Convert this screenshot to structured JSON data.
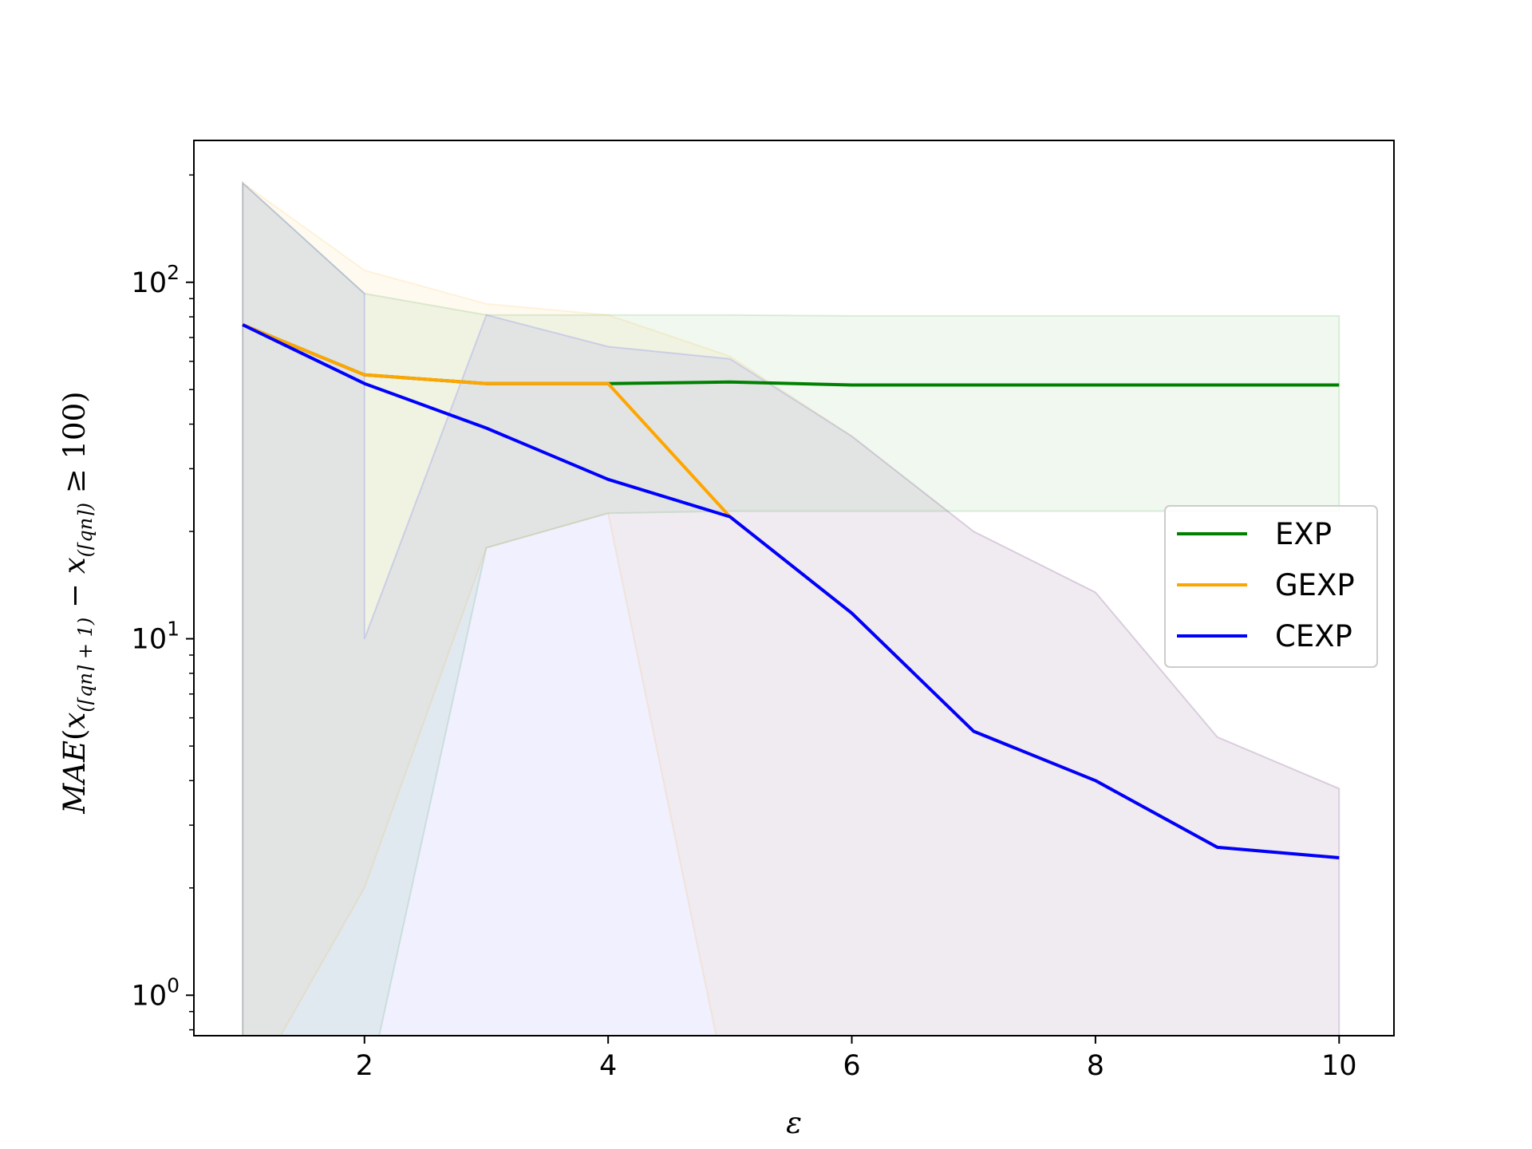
{
  "chart_data": {
    "type": "line",
    "xlabel": "ε",
    "ylabel": "MAE(x(⌈qn⌉+1) − x(⌈qn⌉) ≥ 100)",
    "ylabel_parts": {
      "lead": "MAE",
      "open": "(",
      "var1": "x",
      "sub1": "(⌈qn⌉ + 1)",
      "minus": " − ",
      "var2": "x",
      "sub2": "(⌈qn⌉)",
      "tail": " ≥ 100)"
    },
    "xlim": [
      0.6,
      10.45
    ],
    "ylim": [
      0.77,
      250
    ],
    "yscale": "log",
    "x_ticks": [
      2,
      4,
      6,
      8,
      10
    ],
    "x_tick_labels": [
      "2",
      "4",
      "6",
      "8",
      "10"
    ],
    "y_ticks": [
      {
        "value": 1,
        "base": "10",
        "exp": "0"
      },
      {
        "value": 10,
        "base": "10",
        "exp": "1"
      },
      {
        "value": 100,
        "base": "10",
        "exp": "2"
      }
    ],
    "legend_position": "center-right",
    "grid": false,
    "series": [
      {
        "name": "EXP",
        "color": "#008000",
        "x": [
          1,
          2,
          3,
          4,
          5,
          6,
          7,
          8,
          9,
          10
        ],
        "y": [
          76,
          55,
          52,
          52,
          52.5,
          51.5,
          51.5,
          51.5,
          51.5,
          51.5
        ],
        "band_x": [
          1,
          2,
          3,
          4,
          5,
          6,
          7,
          8,
          9,
          10
        ],
        "band_upper": [
          190,
          93,
          81,
          81,
          81,
          80.5,
          80.5,
          80.5,
          80.5,
          80.5
        ],
        "band_lower": [
          0.5,
          0.5,
          18,
          22.5,
          22.8,
          22.8,
          22.8,
          22.8,
          22.8,
          22.8
        ]
      },
      {
        "name": "GEXP",
        "color": "#ffa500",
        "x": [
          1,
          2,
          3,
          4,
          5,
          6,
          7,
          8,
          9,
          10
        ],
        "y": [
          76,
          55,
          52,
          52,
          22,
          11.8,
          5.5,
          4.0,
          2.6,
          2.43
        ],
        "band_x": [
          1,
          2,
          3,
          4,
          5,
          6,
          7,
          8,
          9,
          10
        ],
        "band_upper": [
          190,
          108,
          87,
          81,
          62,
          37,
          20,
          13.5,
          5.3,
          3.8
        ],
        "band_lower": [
          0.5,
          2.0,
          18,
          22.5,
          0.5,
          0.5,
          0.5,
          0.5,
          0.5,
          0.5
        ]
      },
      {
        "name": "CEXP",
        "color": "#0000ff",
        "x": [
          1,
          2,
          3,
          4,
          5,
          6,
          7,
          8,
          9,
          10
        ],
        "y": [
          76,
          52,
          39,
          28,
          22,
          11.8,
          5.5,
          4.0,
          2.6,
          2.43
        ],
        "band_x": [
          1,
          2,
          2,
          3,
          4,
          5,
          6,
          7,
          8,
          9,
          10
        ],
        "band_upper": [
          190,
          93,
          10,
          81,
          66,
          61,
          37,
          20,
          13.5,
          5.3,
          3.8
        ],
        "band_lower": [
          0.5,
          0.5,
          0.5,
          0.5,
          0.5,
          0.5,
          0.5,
          0.5,
          0.5,
          0.5,
          0.5
        ]
      }
    ]
  }
}
